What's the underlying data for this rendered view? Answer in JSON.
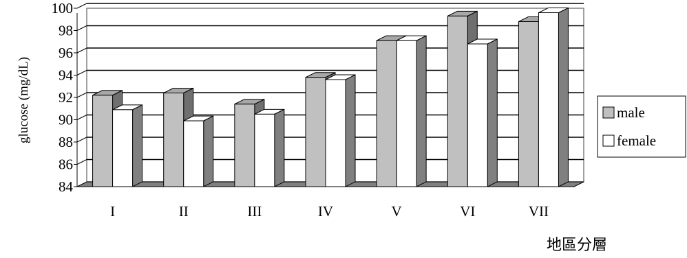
{
  "chart_data": {
    "type": "bar",
    "title": "",
    "ylabel": "glucose (mg/dL)",
    "xlabel": "地區分層",
    "categories": [
      "I",
      "II",
      "III",
      "IV",
      "V",
      "VI",
      "VII"
    ],
    "ylim": [
      84,
      100
    ],
    "yticks": [
      84,
      86,
      88,
      90,
      92,
      94,
      96,
      98,
      100
    ],
    "grid": true,
    "three_d": true,
    "legend_position": "right",
    "series": [
      {
        "name": "male",
        "color": "#c0c0c0",
        "values": [
          92.2,
          92.4,
          91.4,
          93.8,
          97.1,
          99.3,
          98.8
        ]
      },
      {
        "name": "female",
        "color": "#ffffff",
        "values": [
          90.9,
          89.9,
          90.5,
          93.6,
          97.1,
          96.8,
          99.6
        ]
      }
    ]
  }
}
